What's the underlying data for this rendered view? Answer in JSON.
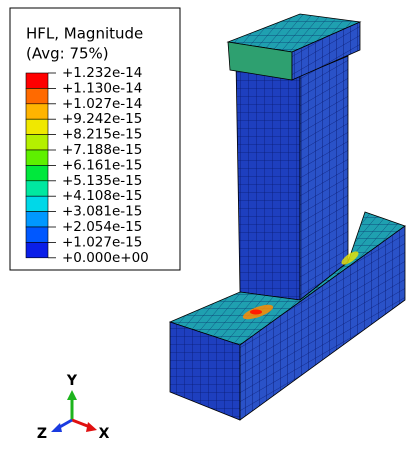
{
  "legend": {
    "title": "HFL, Magnitude",
    "subtitle": "(Avg: 75%)",
    "labels": [
      "+1.232e-14",
      "+1.130e-14",
      "+1.027e-14",
      "+9.242e-15",
      "+8.215e-15",
      "+7.188e-15",
      "+6.161e-15",
      "+5.135e-15",
      "+4.108e-15",
      "+3.081e-15",
      "+2.054e-15",
      "+1.027e-15",
      "+0.000e+00"
    ],
    "colors": [
      "#ff0000",
      "#ff6a00",
      "#ffb400",
      "#f0e800",
      "#b4f000",
      "#5ef000",
      "#00e83c",
      "#00e8a0",
      "#00d8e8",
      "#0098ff",
      "#0058ff",
      "#0a1ee8"
    ]
  },
  "triad": {
    "x": "X",
    "y": "Y",
    "z": "Z"
  }
}
